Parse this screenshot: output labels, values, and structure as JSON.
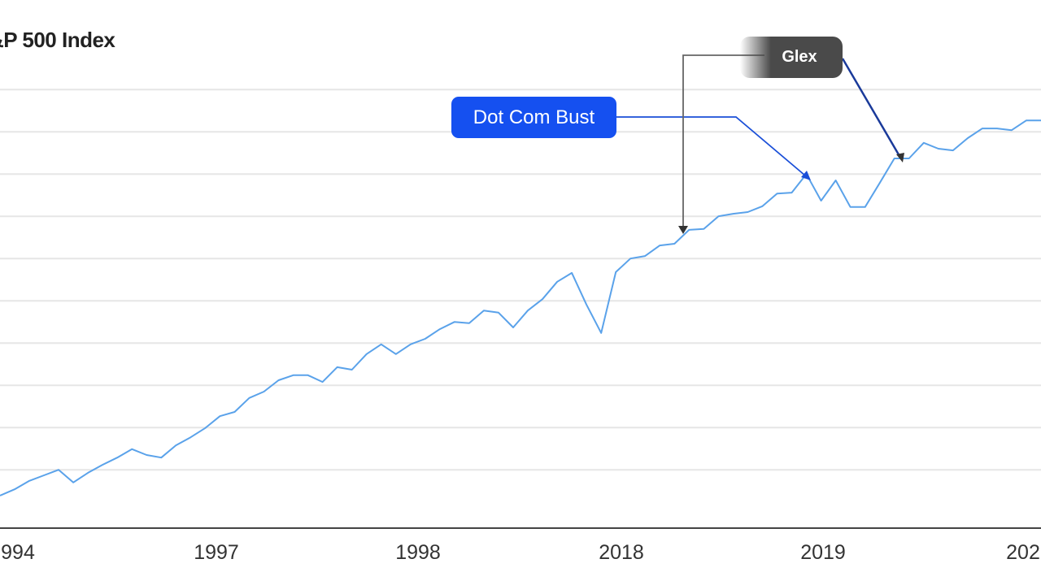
{
  "chart_data": {
    "type": "line",
    "title": "&P 500 Index",
    "xlabel": "",
    "ylabel": "",
    "x_tick_labels": [
      "994",
      "1997",
      "1998",
      "2018",
      "2019",
      "202"
    ],
    "ylim": [
      0,
      125
    ],
    "gridlines": [
      13.8,
      23.8,
      33.8,
      43.8,
      53.8,
      63.8,
      73.8,
      83.8,
      93.8,
      103.8
    ],
    "grid": true,
    "line_color": "#5aa2ea",
    "values": [
      7.7,
      9.2,
      11.2,
      12.5,
      13.8,
      10.8,
      13.1,
      15,
      16.7,
      18.7,
      17.3,
      16.7,
      19.6,
      21.5,
      23.7,
      26.5,
      27.5,
      30.8,
      32.3,
      35,
      36.2,
      36.2,
      34.6,
      38.1,
      37.5,
      41.2,
      43.5,
      41.2,
      43.5,
      44.8,
      47.1,
      48.8,
      48.5,
      51.5,
      51,
      47.5,
      51.5,
      54.2,
      58.3,
      60.4,
      52.9,
      46.2,
      60.6,
      63.8,
      64.4,
      66.9,
      67.3,
      70.6,
      70.8,
      73.8,
      74.4,
      74.8,
      76.2,
      79.2,
      79.4,
      83.8,
      77.5,
      82.3,
      76,
      76,
      81.7,
      87.5,
      87.5,
      91.2,
      89.8,
      89.4,
      92.3,
      94.6,
      94.6,
      94.2,
      96.5,
      96.5
    ],
    "annotations": [
      {
        "text": "Dot Com Bust",
        "color": "#1550f0"
      },
      {
        "text": "Glex",
        "color": "#4a4a4a"
      }
    ]
  }
}
